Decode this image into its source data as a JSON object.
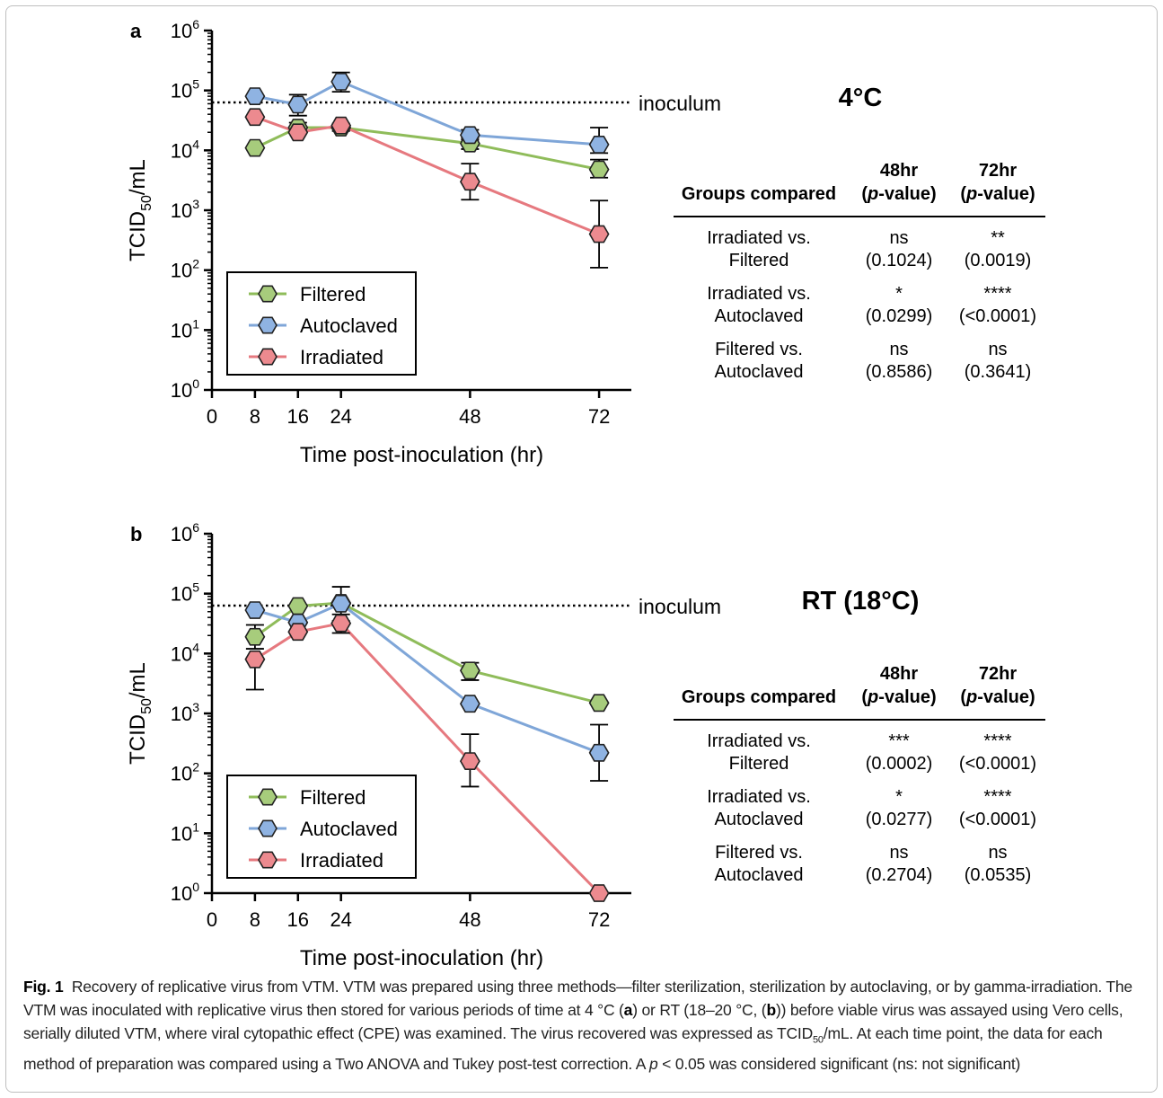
{
  "chart_data": [
    {
      "type": "line",
      "panel_label": "a",
      "title": "4°C",
      "xlabel": "Time post-inoculation (hr)",
      "ylabel_main": "TCID",
      "ylabel_sub": "50",
      "ylabel_tail": "/mL",
      "y_scale": "log",
      "ylim": [
        1,
        1000000
      ],
      "xlim": [
        0,
        78
      ],
      "x_ticks": [
        0,
        8,
        16,
        24,
        48,
        72
      ],
      "y_tick_exponents": [
        0,
        1,
        2,
        3,
        4,
        5,
        6
      ],
      "y_tick_base": "10",
      "x": [
        8,
        16,
        24,
        48,
        72
      ],
      "reference_line": {
        "label": "inoculum",
        "value": 63000
      },
      "legend_position": "lower-left",
      "series": [
        {
          "name": "Filtered",
          "color": "#8fbc5a",
          "fill": "#a7cc7c",
          "values": [
            11000,
            24000,
            24000,
            13000,
            4800
          ],
          "err_low": [
            null,
            19000,
            21000,
            10500,
            3500
          ],
          "err_high": [
            null,
            29000,
            28000,
            16000,
            7000
          ]
        },
        {
          "name": "Autoclaved",
          "color": "#7fa6d8",
          "fill": "#8fb3e2",
          "values": [
            80000,
            58000,
            140000,
            18000,
            12500
          ],
          "err_low": [
            null,
            38000,
            95000,
            15000,
            9000
          ],
          "err_high": [
            null,
            85000,
            200000,
            22000,
            24000
          ]
        },
        {
          "name": "Irradiated",
          "color": "#e6797f",
          "fill": "#ec8a8f",
          "values": [
            36000,
            20000,
            26000,
            3000,
            400
          ],
          "err_low": [
            null,
            null,
            null,
            1500,
            110
          ],
          "err_high": [
            null,
            null,
            null,
            6000,
            1450
          ]
        }
      ],
      "table": {
        "header": {
          "groups": "Groups compared",
          "c48a": "48hr",
          "c72a": "72hr",
          "p": "p",
          "pv": "-value"
        },
        "rows": [
          {
            "l1": "Irradiated vs.",
            "l2": "Filtered",
            "s48": "ns",
            "v48": "(0.1024)",
            "s72": "**",
            "v72": "(0.0019)"
          },
          {
            "l1": "Irradiated vs.",
            "l2": "Autoclaved",
            "s48": "*",
            "v48": "(0.0299)",
            "s72": "****",
            "v72": "(<0.0001)"
          },
          {
            "l1": "Filtered vs.",
            "l2": "Autoclaved",
            "s48": "ns",
            "v48": "(0.8586)",
            "s72": "ns",
            "v72": "(0.3641)"
          }
        ]
      }
    },
    {
      "type": "line",
      "panel_label": "b",
      "title": "RT (18°C)",
      "xlabel": "Time post-inoculation (hr)",
      "ylabel_main": "TCID",
      "ylabel_sub": "50",
      "ylabel_tail": "/mL",
      "y_scale": "log",
      "ylim": [
        1,
        1000000
      ],
      "xlim": [
        0,
        78
      ],
      "x_ticks": [
        0,
        8,
        16,
        24,
        48,
        72
      ],
      "y_tick_exponents": [
        0,
        1,
        2,
        3,
        4,
        5,
        6
      ],
      "y_tick_base": "10",
      "x": [
        8,
        16,
        24,
        48,
        72
      ],
      "reference_line": {
        "label": "inoculum",
        "value": 63000
      },
      "legend_position": "lower-left",
      "series": [
        {
          "name": "Filtered",
          "color": "#8fbc5a",
          "fill": "#a7cc7c",
          "values": [
            19000,
            62000,
            70000,
            5200,
            1500
          ],
          "err_low": [
            12000,
            null,
            null,
            3600,
            null
          ],
          "err_high": [
            30000,
            null,
            null,
            7000,
            null
          ]
        },
        {
          "name": "Autoclaved",
          "color": "#7fa6d8",
          "fill": "#8fb3e2",
          "values": [
            53000,
            33000,
            68000,
            1450,
            220
          ],
          "err_low": [
            null,
            null,
            35000,
            null,
            75
          ],
          "err_high": [
            null,
            null,
            130000,
            null,
            650
          ]
        },
        {
          "name": "Irradiated",
          "color": "#e6797f",
          "fill": "#ec8a8f",
          "values": [
            8000,
            23000,
            32000,
            160,
            1
          ],
          "err_low": [
            2500,
            null,
            22000,
            60,
            null
          ],
          "err_high": [
            null,
            null,
            45000,
            450,
            null
          ]
        }
      ],
      "table": {
        "header": {
          "groups": "Groups compared",
          "c48a": "48hr",
          "c72a": "72hr",
          "p": "p",
          "pv": "-value"
        },
        "rows": [
          {
            "l1": "Irradiated vs.",
            "l2": "Filtered",
            "s48": "***",
            "v48": "(0.0002)",
            "s72": "****",
            "v72": "(<0.0001)"
          },
          {
            "l1": "Irradiated vs.",
            "l2": "Autoclaved",
            "s48": "*",
            "v48": "(0.0277)",
            "s72": "****",
            "v72": "(<0.0001)"
          },
          {
            "l1": "Filtered vs.",
            "l2": "Autoclaved",
            "s48": "ns",
            "v48": "(0.2704)",
            "s72": "ns",
            "v72": "(0.0535)"
          }
        ]
      }
    }
  ],
  "caption": {
    "label": "Fig. 1",
    "p1": "Recovery of replicative virus from VTM. VTM was prepared using three methods—filter sterilization, sterilization by autoclaving, or by gamma-irradiation. The VTM was inoculated with replicative virus then stored for various periods of time at 4 °C (",
    "a": "a",
    "p2": ") or RT (18–20 °C, (",
    "b": "b",
    "p3": ")) before viable virus was assayed using Vero cells, serially diluted VTM, where viral cytopathic effect (CPE) was examined. The virus recovered was expressed as TCID",
    "sub": "50",
    "p4": "/mL. At each time point, the data for each method of preparation was compared using a Two ANOVA and Tukey post-test correction. A ",
    "pi": "p",
    "p5": " < 0.05 was considered significant (ns: not significant)"
  }
}
